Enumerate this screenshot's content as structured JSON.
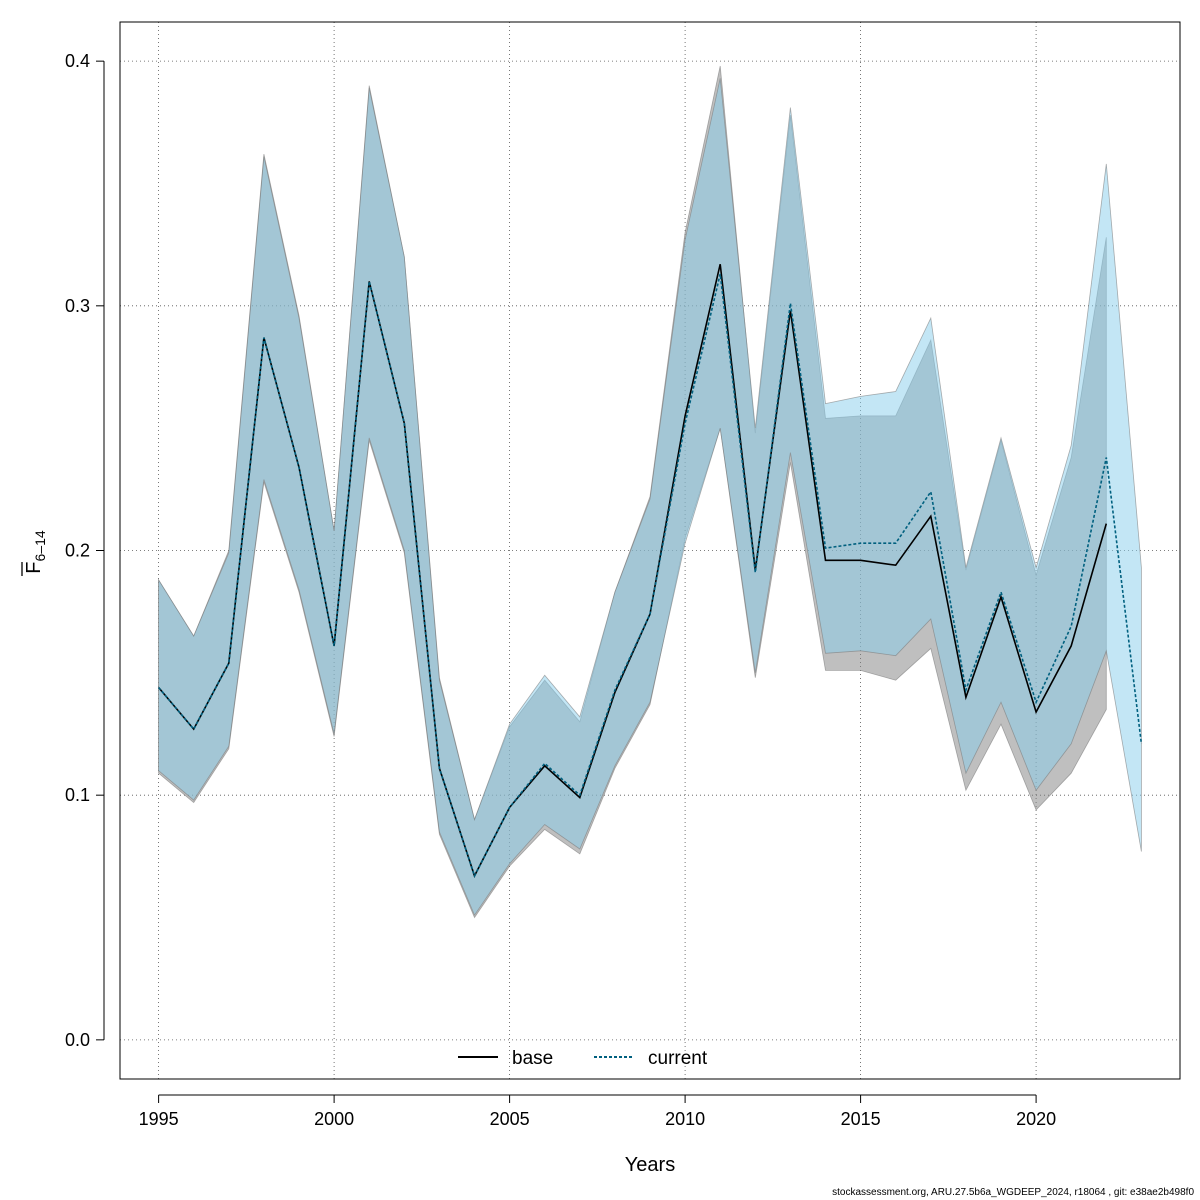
{
  "chart_data": {
    "type": "line",
    "xlabel": "Years",
    "ylabel_main": "F",
    "ylabel_sub": "6–14",
    "xlim": [
      1993.9,
      2024.1
    ],
    "ylim": [
      -0.016,
      0.416
    ],
    "xticks": [
      1995,
      2000,
      2005,
      2010,
      2015,
      2020
    ],
    "yticks": [
      0.0,
      0.1,
      0.2,
      0.3,
      0.4
    ],
    "ytick_labels": [
      "0.0",
      "0.1",
      "0.2",
      "0.3",
      "0.4"
    ],
    "grid": true,
    "legend_position": "bottom-center",
    "colors": {
      "base_band": "#808080",
      "current_band": "#87CEEB",
      "base_line": "#000000",
      "current_line": "#00607F",
      "grid": "#555555"
    },
    "series": [
      {
        "name": "base",
        "line_style": "solid",
        "x": [
          1995,
          1996,
          1997,
          1998,
          1999,
          2000,
          2001,
          2002,
          2003,
          2004,
          2005,
          2006,
          2007,
          2008,
          2009,
          2010,
          2011,
          2012,
          2013,
          2014,
          2015,
          2016,
          2017,
          2018,
          2019,
          2020,
          2021,
          2022
        ],
        "values": [
          0.144,
          0.127,
          0.154,
          0.287,
          0.234,
          0.161,
          0.31,
          0.252,
          0.111,
          0.067,
          0.095,
          0.112,
          0.099,
          0.142,
          0.174,
          0.255,
          0.317,
          0.192,
          0.298,
          0.196,
          0.196,
          0.194,
          0.214,
          0.14,
          0.181,
          0.134,
          0.161,
          0.211
        ],
        "lower": [
          0.109,
          0.097,
          0.119,
          0.228,
          0.183,
          0.124,
          0.245,
          0.199,
          0.084,
          0.05,
          0.071,
          0.086,
          0.076,
          0.111,
          0.137,
          0.205,
          0.25,
          0.148,
          0.236,
          0.151,
          0.151,
          0.147,
          0.16,
          0.102,
          0.129,
          0.094,
          0.109,
          0.135
        ],
        "upper": [
          0.188,
          0.165,
          0.2,
          0.362,
          0.296,
          0.208,
          0.39,
          0.32,
          0.148,
          0.09,
          0.128,
          0.147,
          0.13,
          0.183,
          0.222,
          0.33,
          0.398,
          0.248,
          0.378,
          0.254,
          0.255,
          0.255,
          0.286,
          0.192,
          0.245,
          0.19,
          0.238,
          0.328
        ]
      },
      {
        "name": "current",
        "line_style": "dotted",
        "x": [
          1995,
          1996,
          1997,
          1998,
          1999,
          2000,
          2001,
          2002,
          2003,
          2004,
          2005,
          2006,
          2007,
          2008,
          2009,
          2010,
          2011,
          2012,
          2013,
          2014,
          2015,
          2016,
          2017,
          2018,
          2019,
          2020,
          2021,
          2022,
          2023
        ],
        "values": [
          0.144,
          0.127,
          0.154,
          0.287,
          0.234,
          0.161,
          0.31,
          0.252,
          0.111,
          0.067,
          0.095,
          0.113,
          0.1,
          0.143,
          0.174,
          0.252,
          0.313,
          0.191,
          0.301,
          0.201,
          0.203,
          0.203,
          0.224,
          0.143,
          0.183,
          0.138,
          0.169,
          0.238,
          0.121
        ],
        "lower": [
          0.11,
          0.098,
          0.12,
          0.229,
          0.184,
          0.125,
          0.246,
          0.2,
          0.085,
          0.051,
          0.072,
          0.088,
          0.078,
          0.112,
          0.138,
          0.203,
          0.25,
          0.15,
          0.24,
          0.158,
          0.159,
          0.157,
          0.172,
          0.109,
          0.138,
          0.102,
          0.121,
          0.159,
          0.077
        ],
        "upper": [
          0.188,
          0.165,
          0.199,
          0.361,
          0.295,
          0.208,
          0.389,
          0.32,
          0.147,
          0.09,
          0.129,
          0.149,
          0.132,
          0.183,
          0.221,
          0.327,
          0.393,
          0.25,
          0.381,
          0.26,
          0.263,
          0.265,
          0.295,
          0.193,
          0.246,
          0.193,
          0.243,
          0.358,
          0.193
        ]
      }
    ],
    "legend": [
      {
        "label": "base",
        "line_style": "solid"
      },
      {
        "label": "current",
        "line_style": "dotted"
      }
    ],
    "footer": "stockassessment.org, ARU.27.5b6a_WGDEEP_2024, r18064 , git: e38ae2b498f0"
  }
}
